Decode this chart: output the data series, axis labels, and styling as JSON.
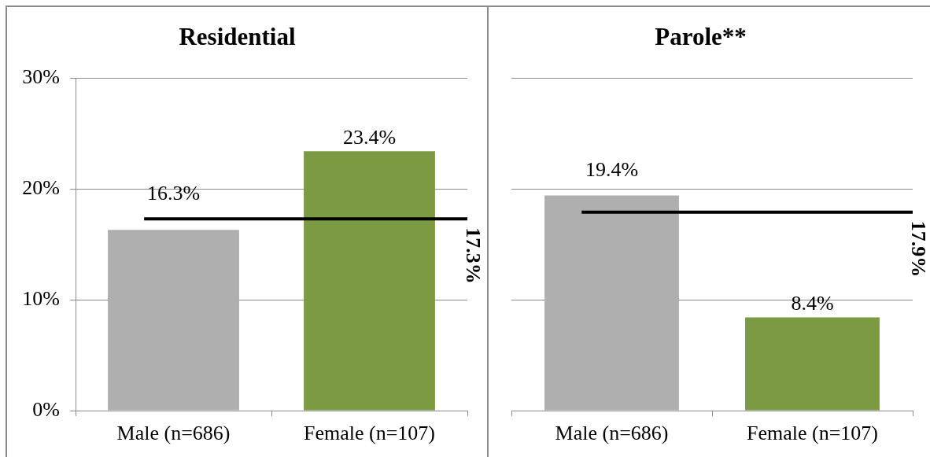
{
  "chart_data": [
    {
      "type": "bar",
      "title": "Residential",
      "categories": [
        "Male (n=686)",
        "Female (n=107)"
      ],
      "values": [
        16.3,
        23.4
      ],
      "colors": [
        "#afafaf",
        "#7b9a42"
      ],
      "ylim": [
        0,
        30
      ],
      "yticks": [
        {
          "value": 0,
          "label": "0%"
        },
        {
          "value": 10,
          "label": "10%"
        },
        {
          "value": 20,
          "label": "20%"
        },
        {
          "value": 30,
          "label": "30%"
        }
      ],
      "grid": "y",
      "value_labels": [
        "16.3%",
        "23.4%"
      ],
      "ref_lines": [
        {
          "axis": "y",
          "value": 17.3,
          "label": "17.3%",
          "color": "#000000"
        }
      ]
    },
    {
      "type": "bar",
      "title": "Parole**",
      "categories": [
        "Male (n=686)",
        "Female (n=107)"
      ],
      "values": [
        19.4,
        8.4
      ],
      "colors": [
        "#afafaf",
        "#7b9a42"
      ],
      "ylim": [
        0,
        30
      ],
      "yticks": [
        0,
        10,
        20,
        30
      ],
      "grid": "y",
      "tick_labels": "x",
      "value_labels": [
        "19.4%",
        "8.4%"
      ],
      "ref_lines": [
        {
          "axis": "y",
          "value": 17.9,
          "label": "17.9%",
          "color": "#000000"
        }
      ]
    }
  ]
}
